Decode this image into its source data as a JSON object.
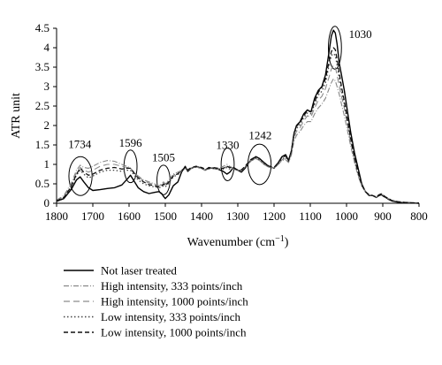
{
  "chart_data": {
    "type": "line",
    "xlabel": "Wavenumber (cm",
    "xlabel_sup": "−1",
    "xlabel_tail": ")",
    "ylabel": "ATR unit",
    "xlim": [
      1800,
      800
    ],
    "ylim": [
      0,
      4.5
    ],
    "x_reversed": true,
    "grid": false,
    "legend_position": "bottom",
    "x_ticks": [
      1800,
      1700,
      1600,
      1500,
      1400,
      1300,
      1200,
      1100,
      1000,
      900,
      800
    ],
    "x_tick_labels": [
      "1800",
      "1700",
      "1600",
      "1500",
      "1400",
      "1300",
      "1200",
      "1100",
      "1000",
      "900",
      "800"
    ],
    "y_ticks": [
      0,
      0.5,
      1,
      1.5,
      2,
      2.5,
      3,
      3.5,
      4,
      4.5
    ],
    "y_tick_labels": [
      "0",
      "0.5",
      "1",
      "1.5",
      "2",
      "2.5",
      "3",
      "3.5",
      "4",
      "4.5"
    ],
    "annotations": [
      {
        "label": "1734",
        "x": 1734,
        "y": 0.7,
        "rx": 32,
        "ry": 0.5,
        "label_x": 1736,
        "label_y": 1.42
      },
      {
        "label": "1596",
        "x": 1596,
        "y": 0.95,
        "rx": 18,
        "ry": 0.42,
        "label_x": 1596,
        "label_y": 1.45
      },
      {
        "label": "1505",
        "x": 1505,
        "y": 0.6,
        "rx": 18,
        "ry": 0.38,
        "label_x": 1505,
        "label_y": 1.08
      },
      {
        "label": "1330",
        "x": 1328,
        "y": 1.0,
        "rx": 18,
        "ry": 0.42,
        "label_x": 1328,
        "label_y": 1.4
      },
      {
        "label": "1242",
        "x": 1240,
        "y": 1.0,
        "rx": 32,
        "ry": 0.52,
        "label_x": 1238,
        "label_y": 1.65
      },
      {
        "label": "1030",
        "x": 1032,
        "y": 4.0,
        "rx": 18,
        "ry": 0.55,
        "label_x": 962,
        "label_y": 4.25,
        "label_only": true
      }
    ],
    "series": [
      {
        "name": "Not laser treated",
        "color": "#000000",
        "dash": "",
        "width": 1.4,
        "x": [
          1800,
          1780,
          1760,
          1745,
          1735,
          1725,
          1712,
          1700,
          1680,
          1660,
          1640,
          1620,
          1605,
          1596,
          1588,
          1575,
          1560,
          1545,
          1530,
          1518,
          1510,
          1505,
          1500,
          1490,
          1478,
          1465,
          1455,
          1445,
          1438,
          1428,
          1415,
          1400,
          1390,
          1380,
          1370,
          1355,
          1340,
          1330,
          1322,
          1312,
          1300,
          1290,
          1280,
          1265,
          1250,
          1240,
          1228,
          1215,
          1200,
          1188,
          1178,
          1168,
          1160,
          1152,
          1145,
          1138,
          1128,
          1118,
          1108,
          1098,
          1088,
          1078,
          1068,
          1058,
          1048,
          1042,
          1036,
          1031,
          1026,
          1020,
          1014,
          1006,
          998,
          988,
          978,
          968,
          958,
          948,
          938,
          928,
          918,
          910,
          904,
          898,
          892,
          884,
          875,
          860,
          840,
          820,
          800
        ],
        "y": [
          0.05,
          0.12,
          0.35,
          0.6,
          0.68,
          0.55,
          0.4,
          0.33,
          0.35,
          0.38,
          0.4,
          0.47,
          0.62,
          0.72,
          0.6,
          0.4,
          0.3,
          0.25,
          0.28,
          0.3,
          0.25,
          0.18,
          0.12,
          0.22,
          0.45,
          0.55,
          0.8,
          0.95,
          0.82,
          0.9,
          0.95,
          0.9,
          0.85,
          0.92,
          0.9,
          0.88,
          0.82,
          0.75,
          0.8,
          0.92,
          0.85,
          0.8,
          0.9,
          1.1,
          1.2,
          1.15,
          1.05,
          0.95,
          0.9,
          1.05,
          1.2,
          1.25,
          1.1,
          1.35,
          1.8,
          2.0,
          2.1,
          2.3,
          2.4,
          2.35,
          2.7,
          2.9,
          3.0,
          3.3,
          3.9,
          4.3,
          4.45,
          4.38,
          4.1,
          3.6,
          3.3,
          2.9,
          2.4,
          1.8,
          1.3,
          0.9,
          0.5,
          0.3,
          0.2,
          0.2,
          0.15,
          0.2,
          0.22,
          0.18,
          0.15,
          0.1,
          0.06,
          0.03,
          0.02,
          0.01,
          0.0
        ]
      },
      {
        "name": "High intensity, 333 points/inch",
        "color": "#888888",
        "dash": "6 2 1 2",
        "width": 1.1,
        "x": [
          1800,
          1780,
          1760,
          1745,
          1735,
          1725,
          1712,
          1700,
          1680,
          1660,
          1640,
          1620,
          1605,
          1596,
          1588,
          1575,
          1560,
          1545,
          1530,
          1518,
          1510,
          1505,
          1500,
          1490,
          1478,
          1465,
          1455,
          1445,
          1438,
          1428,
          1415,
          1400,
          1390,
          1380,
          1370,
          1355,
          1340,
          1330,
          1322,
          1312,
          1300,
          1290,
          1280,
          1265,
          1250,
          1240,
          1228,
          1215,
          1200,
          1188,
          1178,
          1168,
          1160,
          1152,
          1145,
          1138,
          1128,
          1118,
          1108,
          1098,
          1088,
          1078,
          1068,
          1058,
          1048,
          1042,
          1036,
          1031,
          1026,
          1020,
          1014,
          1006,
          998,
          988,
          978,
          968,
          958,
          948,
          938,
          928,
          918,
          910,
          904,
          898,
          892,
          884,
          875,
          860,
          840,
          820,
          800
        ],
        "y": [
          0.08,
          0.2,
          0.5,
          0.85,
          0.98,
          0.92,
          0.9,
          0.95,
          1.05,
          1.1,
          1.08,
          1.0,
          0.95,
          0.9,
          0.82,
          0.7,
          0.6,
          0.55,
          0.5,
          0.45,
          0.5,
          0.55,
          0.5,
          0.6,
          0.75,
          0.8,
          0.85,
          0.9,
          0.85,
          0.9,
          0.95,
          0.9,
          0.85,
          0.88,
          0.92,
          0.9,
          0.95,
          1.0,
          0.95,
          0.9,
          0.85,
          0.85,
          0.95,
          1.1,
          1.15,
          1.1,
          1.0,
          0.95,
          0.9,
          1.0,
          1.1,
          1.12,
          1.05,
          1.25,
          1.6,
          1.75,
          1.85,
          2.0,
          2.1,
          2.1,
          2.3,
          2.45,
          2.55,
          2.7,
          2.95,
          3.1,
          3.2,
          3.15,
          3.0,
          2.8,
          2.55,
          2.25,
          1.9,
          1.45,
          1.05,
          0.7,
          0.45,
          0.3,
          0.22,
          0.2,
          0.16,
          0.22,
          0.25,
          0.2,
          0.16,
          0.12,
          0.08,
          0.05,
          0.03,
          0.02,
          0.01
        ]
      },
      {
        "name": "High intensity, 1000 points/inch",
        "color": "#8c8c8c",
        "dash": "7 4",
        "width": 1.1,
        "x": [
          1800,
          1780,
          1760,
          1745,
          1735,
          1725,
          1712,
          1700,
          1680,
          1660,
          1640,
          1620,
          1605,
          1596,
          1588,
          1575,
          1560,
          1545,
          1530,
          1518,
          1510,
          1505,
          1500,
          1490,
          1478,
          1465,
          1455,
          1445,
          1438,
          1428,
          1415,
          1400,
          1390,
          1380,
          1370,
          1355,
          1340,
          1330,
          1322,
          1312,
          1300,
          1290,
          1280,
          1265,
          1250,
          1240,
          1228,
          1215,
          1200,
          1188,
          1178,
          1168,
          1160,
          1152,
          1145,
          1138,
          1128,
          1118,
          1108,
          1098,
          1088,
          1078,
          1068,
          1058,
          1048,
          1042,
          1036,
          1031,
          1026,
          1020,
          1014,
          1006,
          998,
          988,
          978,
          968,
          958,
          948,
          938,
          928,
          918,
          910,
          904,
          898,
          892,
          884,
          875,
          860,
          840,
          820,
          800
        ],
        "y": [
          0.06,
          0.17,
          0.45,
          0.78,
          0.92,
          0.85,
          0.8,
          0.85,
          0.95,
          1.0,
          1.0,
          0.95,
          0.92,
          0.88,
          0.8,
          0.68,
          0.58,
          0.52,
          0.48,
          0.45,
          0.48,
          0.52,
          0.48,
          0.58,
          0.72,
          0.78,
          0.84,
          0.9,
          0.85,
          0.9,
          0.93,
          0.9,
          0.86,
          0.88,
          0.9,
          0.88,
          0.9,
          0.95,
          0.9,
          0.88,
          0.84,
          0.84,
          0.93,
          1.08,
          1.15,
          1.1,
          1.0,
          0.93,
          0.9,
          1.0,
          1.12,
          1.15,
          1.05,
          1.28,
          1.68,
          1.85,
          1.95,
          2.12,
          2.25,
          2.22,
          2.45,
          2.65,
          2.75,
          2.95,
          3.25,
          3.45,
          3.55,
          3.5,
          3.3,
          3.0,
          2.75,
          2.45,
          2.05,
          1.55,
          1.12,
          0.75,
          0.45,
          0.3,
          0.22,
          0.2,
          0.16,
          0.22,
          0.24,
          0.2,
          0.16,
          0.12,
          0.07,
          0.04,
          0.03,
          0.02,
          0.01
        ]
      },
      {
        "name": "Low intensity, 333 points/inch",
        "color": "#444444",
        "dash": "1.5 2.5",
        "width": 1.3,
        "x": [
          1800,
          1780,
          1760,
          1745,
          1735,
          1725,
          1712,
          1700,
          1680,
          1660,
          1640,
          1620,
          1605,
          1596,
          1588,
          1575,
          1560,
          1545,
          1530,
          1518,
          1510,
          1505,
          1500,
          1490,
          1478,
          1465,
          1455,
          1445,
          1438,
          1428,
          1415,
          1400,
          1390,
          1380,
          1370,
          1355,
          1340,
          1330,
          1322,
          1312,
          1300,
          1290,
          1280,
          1265,
          1250,
          1240,
          1228,
          1215,
          1200,
          1188,
          1178,
          1168,
          1160,
          1152,
          1145,
          1138,
          1128,
          1118,
          1108,
          1098,
          1088,
          1078,
          1068,
          1058,
          1048,
          1042,
          1036,
          1031,
          1026,
          1020,
          1014,
          1006,
          998,
          988,
          978,
          968,
          958,
          948,
          938,
          928,
          918,
          910,
          904,
          898,
          892,
          884,
          875,
          860,
          840,
          820,
          800
        ],
        "y": [
          0.05,
          0.14,
          0.4,
          0.72,
          0.85,
          0.75,
          0.65,
          0.7,
          0.8,
          0.85,
          0.85,
          0.82,
          0.85,
          0.85,
          0.75,
          0.6,
          0.5,
          0.45,
          0.42,
          0.4,
          0.42,
          0.45,
          0.42,
          0.52,
          0.68,
          0.74,
          0.82,
          0.9,
          0.84,
          0.9,
          0.93,
          0.9,
          0.86,
          0.9,
          0.9,
          0.88,
          0.88,
          0.92,
          0.88,
          0.9,
          0.85,
          0.84,
          0.92,
          1.08,
          1.17,
          1.12,
          1.02,
          0.94,
          0.9,
          1.02,
          1.15,
          1.18,
          1.08,
          1.32,
          1.75,
          1.92,
          2.02,
          2.2,
          2.32,
          2.3,
          2.55,
          2.78,
          2.88,
          3.1,
          3.55,
          3.8,
          3.85,
          3.8,
          3.55,
          3.2,
          2.9,
          2.55,
          2.12,
          1.6,
          1.15,
          0.78,
          0.46,
          0.3,
          0.22,
          0.2,
          0.16,
          0.22,
          0.24,
          0.2,
          0.16,
          0.12,
          0.07,
          0.04,
          0.02,
          0.01,
          0.01
        ]
      },
      {
        "name": "Low intensity, 1000 points/inch",
        "color": "#111111",
        "dash": "5 3",
        "width": 1.3,
        "x": [
          1800,
          1780,
          1760,
          1745,
          1735,
          1725,
          1712,
          1700,
          1680,
          1660,
          1640,
          1620,
          1605,
          1596,
          1588,
          1575,
          1560,
          1545,
          1530,
          1518,
          1510,
          1505,
          1500,
          1490,
          1478,
          1465,
          1455,
          1445,
          1438,
          1428,
          1415,
          1400,
          1390,
          1380,
          1370,
          1355,
          1340,
          1330,
          1322,
          1312,
          1300,
          1290,
          1280,
          1265,
          1250,
          1240,
          1228,
          1215,
          1200,
          1188,
          1178,
          1168,
          1160,
          1152,
          1145,
          1138,
          1128,
          1118,
          1108,
          1098,
          1088,
          1078,
          1068,
          1058,
          1048,
          1042,
          1036,
          1031,
          1026,
          1020,
          1014,
          1006,
          998,
          988,
          978,
          968,
          958,
          948,
          938,
          928,
          918,
          910,
          904,
          898,
          892,
          884,
          875,
          860,
          840,
          820,
          800
        ],
        "y": [
          0.06,
          0.15,
          0.42,
          0.75,
          0.9,
          0.8,
          0.72,
          0.75,
          0.85,
          0.9,
          0.92,
          0.88,
          0.9,
          0.9,
          0.8,
          0.65,
          0.55,
          0.48,
          0.45,
          0.42,
          0.45,
          0.5,
          0.45,
          0.55,
          0.7,
          0.76,
          0.84,
          0.92,
          0.86,
          0.92,
          0.95,
          0.92,
          0.88,
          0.9,
          0.92,
          0.9,
          0.9,
          0.95,
          0.92,
          0.9,
          0.86,
          0.86,
          0.95,
          1.12,
          1.2,
          1.15,
          1.05,
          0.96,
          0.92,
          1.05,
          1.18,
          1.22,
          1.1,
          1.35,
          1.8,
          1.98,
          2.08,
          2.25,
          2.38,
          2.35,
          2.6,
          2.85,
          2.98,
          3.2,
          3.65,
          3.9,
          4.0,
          3.95,
          3.7,
          3.35,
          3.0,
          2.62,
          2.18,
          1.65,
          1.18,
          0.8,
          0.48,
          0.3,
          0.22,
          0.2,
          0.16,
          0.22,
          0.24,
          0.2,
          0.16,
          0.12,
          0.07,
          0.04,
          0.02,
          0.01,
          0.01
        ]
      }
    ]
  }
}
